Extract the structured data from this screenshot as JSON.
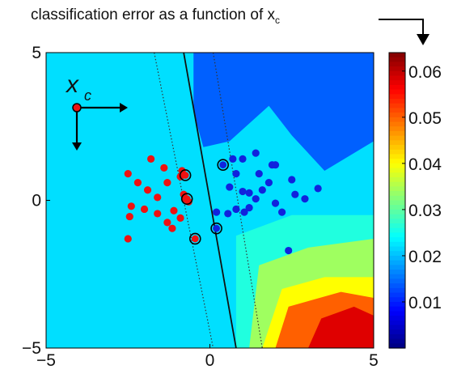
{
  "title": {
    "main": "classification error as a function of x",
    "subscript": "c"
  },
  "inset_label": {
    "symbol": "x",
    "subscript": "c"
  },
  "chart_data": {
    "type": "heatmap",
    "xlim": [
      -5,
      5
    ],
    "ylim": [
      -5,
      5
    ],
    "x_ticks": [
      "−5",
      "0",
      "5"
    ],
    "y_ticks": [
      "5",
      "0",
      "−5"
    ],
    "colorbar": {
      "range": [
        0.0,
        0.064
      ],
      "ticks": [
        "0.06",
        "0.05",
        "0.04",
        "0.03",
        "0.02",
        "0.01"
      ],
      "tick_values": [
        0.06,
        0.05,
        0.04,
        0.03,
        0.02,
        0.01
      ],
      "colormap": "jet"
    },
    "background_value": 0.022,
    "regions": [
      {
        "level": 0.014,
        "polygon": [
          [
            -0.5,
            5
          ],
          [
            5,
            5
          ],
          [
            5,
            2
          ],
          [
            3.5,
            1
          ],
          [
            2.5,
            2.2
          ],
          [
            1.8,
            3.2
          ],
          [
            0.6,
            2.0
          ],
          [
            -0.2,
            1.8
          ],
          [
            -0.5,
            3
          ]
        ]
      },
      {
        "level": 0.026,
        "polygon": [
          [
            0.8,
            -1.2
          ],
          [
            2.5,
            -0.5
          ],
          [
            5,
            -0.5
          ],
          [
            5,
            -5
          ],
          [
            0.8,
            -5
          ]
        ]
      },
      {
        "level": 0.034,
        "polygon": [
          [
            1.5,
            -2.2
          ],
          [
            3,
            -1.6
          ],
          [
            5,
            -1.3
          ],
          [
            5,
            -5
          ],
          [
            1.2,
            -5
          ]
        ]
      },
      {
        "level": 0.04,
        "polygon": [
          [
            2.2,
            -3
          ],
          [
            3.5,
            -2.6
          ],
          [
            5,
            -2.6
          ],
          [
            5,
            -5
          ],
          [
            1.6,
            -5
          ]
        ]
      },
      {
        "level": 0.05,
        "polygon": [
          [
            2.4,
            -3.6
          ],
          [
            4,
            -3.1
          ],
          [
            5,
            -3.3
          ],
          [
            5,
            -5
          ],
          [
            2,
            -5
          ]
        ]
      },
      {
        "level": 0.058,
        "polygon": [
          [
            3.4,
            -4
          ],
          [
            4.4,
            -3.6
          ],
          [
            5,
            -3.9
          ],
          [
            5,
            -5
          ],
          [
            3,
            -5
          ]
        ]
      }
    ],
    "decision_boundary": {
      "line": [
        [
          -0.8,
          5
        ],
        [
          0.8,
          -5
        ]
      ]
    },
    "margins": [
      {
        "line": [
          [
            -1.7,
            5
          ],
          [
            0.1,
            -5
          ]
        ]
      },
      {
        "line": [
          [
            0.1,
            5
          ],
          [
            1.6,
            -5
          ]
        ]
      }
    ],
    "series": [
      {
        "color": "#ee1111",
        "points": [
          [
            -1.8,
            1.4
          ],
          [
            -1.4,
            1.1
          ],
          [
            -1.3,
            0.6
          ],
          [
            -2.5,
            0.9
          ],
          [
            -2.2,
            0.6
          ],
          [
            -1.9,
            0.35
          ],
          [
            -1.6,
            0.1
          ],
          [
            -2.4,
            -0.2
          ],
          [
            -2.0,
            -0.3
          ],
          [
            -1.6,
            -0.45
          ],
          [
            -1.1,
            -0.35
          ],
          [
            -1.3,
            -0.75
          ],
          [
            -1.15,
            -0.95
          ],
          [
            -2.45,
            -0.55
          ],
          [
            -2.5,
            -1.3
          ],
          [
            -0.9,
            0.8
          ],
          [
            -0.8,
            0.2
          ],
          [
            -0.75,
            0.05
          ],
          [
            -0.9,
            -0.6
          ],
          [
            -0.65,
            -0.05
          ],
          [
            -0.85,
            1.0
          ]
        ],
        "support_vectors": [
          [
            -0.75,
            0.85
          ],
          [
            -0.7,
            0.05
          ],
          [
            -0.45,
            -1.3
          ]
        ]
      },
      {
        "color": "#1122dd",
        "points": [
          [
            1.4,
            1.6
          ],
          [
            1.0,
            1.4
          ],
          [
            0.7,
            1.4
          ],
          [
            0.8,
            0.9
          ],
          [
            1.9,
            1.2
          ],
          [
            2.0,
            1.2
          ],
          [
            1.5,
            0.9
          ],
          [
            1.8,
            0.6
          ],
          [
            2.5,
            0.7
          ],
          [
            3.3,
            0.4
          ],
          [
            1.2,
            0.25
          ],
          [
            1.6,
            0.35
          ],
          [
            0.6,
            0.45
          ],
          [
            1.0,
            0.3
          ],
          [
            2.6,
            0.2
          ],
          [
            2.9,
            0.05
          ],
          [
            2.0,
            -0.1
          ],
          [
            1.4,
            0.05
          ],
          [
            1.2,
            -0.25
          ],
          [
            1.05,
            -0.4
          ],
          [
            0.8,
            -0.3
          ],
          [
            0.55,
            -0.45
          ],
          [
            2.2,
            -0.4
          ],
          [
            2.4,
            -1.7
          ],
          [
            0.2,
            -0.4
          ]
        ],
        "support_vectors": [
          [
            0.4,
            1.2
          ],
          [
            0.2,
            -0.95
          ]
        ]
      }
    ]
  }
}
